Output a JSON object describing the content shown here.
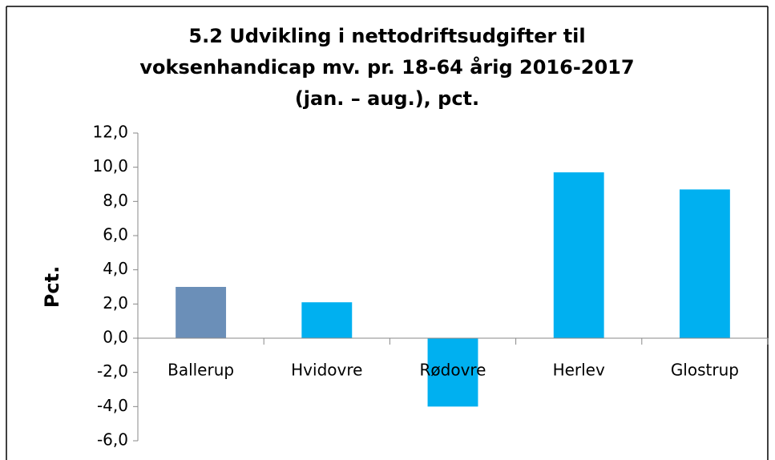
{
  "chart_data": {
    "type": "bar",
    "title": [
      "5.2 Udvikling i nettodriftsudgifter til",
      "voksenhandicap mv. pr. 18-64 årig 2016-2017",
      "(jan. – aug.), pct."
    ],
    "y_label": "Pct.",
    "categories": [
      "Ballerup",
      "Hvidovre",
      "Rødovre",
      "Herlev",
      "Glostrup"
    ],
    "values": [
      3.0,
      2.1,
      -4.0,
      9.7,
      8.7
    ],
    "colors": [
      "#6b8fb8",
      "#00b0f0",
      "#00b0f0",
      "#00b0f0",
      "#00b0f0"
    ],
    "ylim": [
      -6,
      12
    ],
    "yticks": [
      {
        "value": -6,
        "label": "-6,0"
      },
      {
        "value": -4,
        "label": "-4,0"
      },
      {
        "value": -2,
        "label": "-2,0"
      },
      {
        "value": 0,
        "label": "0,0"
      },
      {
        "value": 2,
        "label": "2,0"
      },
      {
        "value": 4,
        "label": "4,0"
      },
      {
        "value": 6,
        "label": "6,0"
      },
      {
        "value": 8,
        "label": "8,0"
      },
      {
        "value": 10,
        "label": "10,0"
      },
      {
        "value": 12,
        "label": "12,0"
      }
    ],
    "grid": false
  }
}
